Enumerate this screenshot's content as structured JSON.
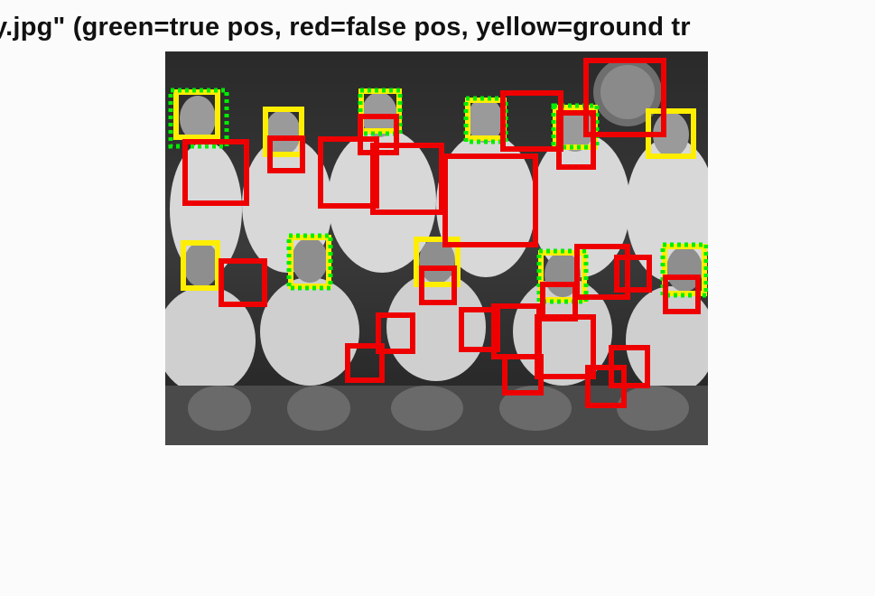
{
  "figure": {
    "title": "y.jpg\" (green=true pos, red=false pos, yellow=ground tr"
  },
  "legend_colors": {
    "true_positive": "#00ee00",
    "false_positive": "#ee0000",
    "ground_truth": "#ffee00"
  },
  "photo": {
    "description": "black-and-white team photograph, two rows of players in white jerseys"
  }
}
